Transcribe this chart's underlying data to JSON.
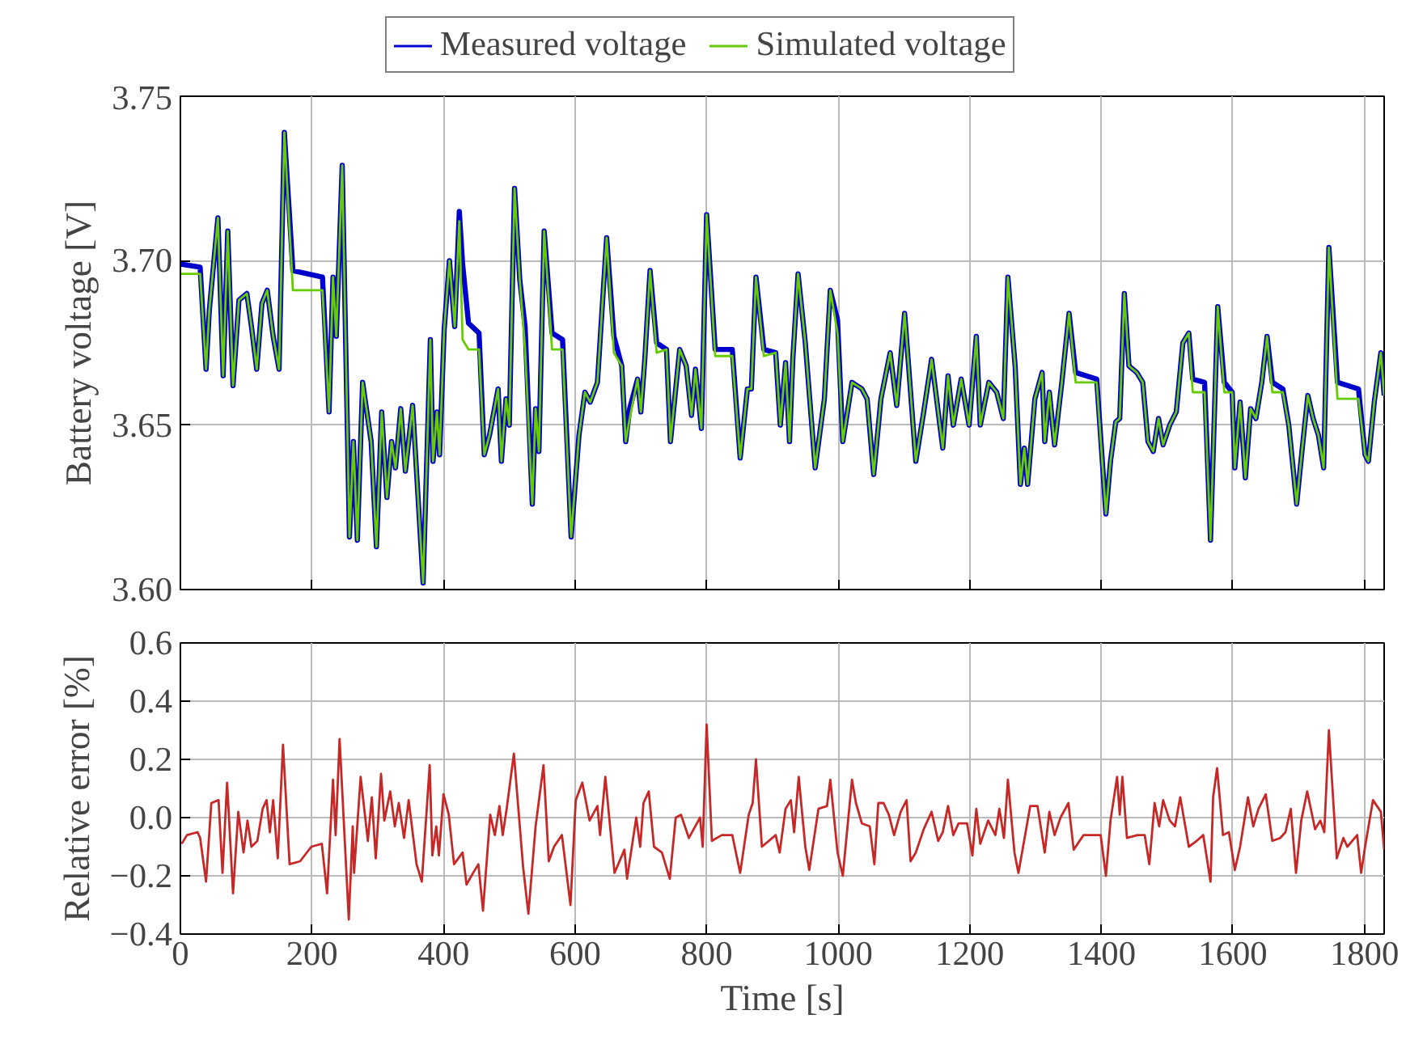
{
  "chart_data": [
    {
      "type": "line",
      "ylabel": "Battery voltage [V]",
      "xlim": [
        0,
        1830
      ],
      "ylim": [
        3.6,
        3.75
      ],
      "xticks": [
        0,
        200,
        400,
        600,
        800,
        1000,
        1200,
        1400,
        1600,
        1800
      ],
      "yticks": [
        {
          "value": 3.6,
          "label": "3.60"
        },
        {
          "value": 3.65,
          "label": "3.65"
        },
        {
          "value": 3.7,
          "label": "3.70"
        },
        {
          "value": 3.75,
          "label": "3.75"
        }
      ],
      "tick_labels": "y",
      "grid": true,
      "legend": "top",
      "x": [
        0,
        30,
        39,
        44,
        57,
        65,
        72,
        80,
        89,
        101,
        108,
        116,
        124,
        132,
        141,
        150,
        158,
        171,
        216,
        226,
        232,
        237,
        246,
        257,
        263,
        269,
        277,
        290,
        298,
        306,
        314,
        321,
        327,
        335,
        342,
        353,
        369,
        380,
        384,
        390,
        394,
        401,
        409,
        417,
        424,
        429,
        438,
        454,
        462,
        470,
        483,
        488,
        495,
        500,
        508,
        516,
        524,
        535,
        540,
        545,
        553,
        565,
        581,
        594,
        606,
        615,
        623,
        634,
        648,
        659,
        671,
        677,
        683,
        695,
        700,
        706,
        714,
        724,
        739,
        745,
        759,
        769,
        777,
        783,
        792,
        800,
        813,
        839,
        851,
        862,
        868,
        875,
        887,
        905,
        912,
        920,
        926,
        931,
        939,
        950,
        965,
        979,
        988,
        999,
        1007,
        1021,
        1036,
        1044,
        1054,
        1065,
        1079,
        1089,
        1101,
        1118,
        1130,
        1142,
        1159,
        1167,
        1175,
        1187,
        1199,
        1210,
        1216,
        1229,
        1241,
        1251,
        1258,
        1269,
        1277,
        1283,
        1288,
        1299,
        1310,
        1314,
        1321,
        1329,
        1340,
        1351,
        1361,
        1393,
        1407,
        1414,
        1422,
        1428,
        1435,
        1442,
        1454,
        1463,
        1471,
        1479,
        1487,
        1494,
        1504,
        1514,
        1524,
        1533,
        1539,
        1557,
        1566,
        1577,
        1587,
        1599,
        1603,
        1611,
        1619,
        1627,
        1635,
        1644,
        1652,
        1660,
        1676,
        1685,
        1697,
        1705,
        1714,
        1722,
        1730,
        1738,
        1746,
        1759,
        1791,
        1801,
        1806,
        1815,
        1825,
        1830
      ],
      "series": [
        {
          "name": "Measured voltage",
          "color": "#0000cc",
          "values": [
            3.699,
            3.698,
            3.667,
            3.685,
            3.713,
            3.665,
            3.709,
            3.662,
            3.688,
            3.69,
            3.68,
            3.667,
            3.687,
            3.691,
            3.677,
            3.667,
            3.739,
            3.697,
            3.695,
            3.654,
            3.695,
            3.677,
            3.729,
            3.616,
            3.645,
            3.615,
            3.663,
            3.645,
            3.613,
            3.654,
            3.628,
            3.645,
            3.637,
            3.655,
            3.636,
            3.656,
            3.602,
            3.676,
            3.639,
            3.654,
            3.641,
            3.679,
            3.7,
            3.68,
            3.715,
            3.699,
            3.681,
            3.678,
            3.641,
            3.647,
            3.661,
            3.639,
            3.658,
            3.65,
            3.722,
            3.694,
            3.68,
            3.626,
            3.655,
            3.642,
            3.709,
            3.678,
            3.676,
            3.616,
            3.647,
            3.66,
            3.657,
            3.663,
            3.707,
            3.677,
            3.668,
            3.645,
            3.655,
            3.664,
            3.654,
            3.67,
            3.697,
            3.675,
            3.673,
            3.645,
            3.673,
            3.668,
            3.653,
            3.667,
            3.649,
            3.714,
            3.673,
            3.673,
            3.64,
            3.661,
            3.661,
            3.695,
            3.673,
            3.672,
            3.65,
            3.669,
            3.645,
            3.67,
            3.696,
            3.675,
            3.637,
            3.658,
            3.691,
            3.682,
            3.645,
            3.663,
            3.661,
            3.658,
            3.635,
            3.658,
            3.672,
            3.656,
            3.684,
            3.639,
            3.654,
            3.67,
            3.643,
            3.665,
            3.65,
            3.664,
            3.65,
            3.677,
            3.65,
            3.663,
            3.66,
            3.652,
            3.695,
            3.668,
            3.632,
            3.643,
            3.632,
            3.658,
            3.666,
            3.645,
            3.66,
            3.644,
            3.663,
            3.684,
            3.666,
            3.664,
            3.623,
            3.639,
            3.651,
            3.652,
            3.69,
            3.668,
            3.666,
            3.663,
            3.645,
            3.642,
            3.652,
            3.644,
            3.65,
            3.654,
            3.675,
            3.678,
            3.664,
            3.663,
            3.615,
            3.686,
            3.663,
            3.66,
            3.637,
            3.657,
            3.634,
            3.655,
            3.652,
            3.663,
            3.677,
            3.663,
            3.661,
            3.65,
            3.626,
            3.642,
            3.659,
            3.652,
            3.647,
            3.637,
            3.704,
            3.663,
            3.661,
            3.641,
            3.639,
            3.657,
            3.672,
            3.659
          ]
        },
        {
          "name": "Simulated voltage",
          "color": "#66cc00",
          "values": [
            3.696,
            3.696,
            3.667,
            3.685,
            3.713,
            3.665,
            3.709,
            3.662,
            3.688,
            3.69,
            3.68,
            3.667,
            3.687,
            3.691,
            3.677,
            3.667,
            3.739,
            3.691,
            3.691,
            3.654,
            3.695,
            3.677,
            3.729,
            3.616,
            3.645,
            3.615,
            3.663,
            3.645,
            3.613,
            3.654,
            3.628,
            3.645,
            3.637,
            3.655,
            3.636,
            3.656,
            3.602,
            3.676,
            3.639,
            3.654,
            3.641,
            3.679,
            3.7,
            3.68,
            3.712,
            3.676,
            3.673,
            3.673,
            3.641,
            3.647,
            3.661,
            3.639,
            3.658,
            3.65,
            3.722,
            3.694,
            3.673,
            3.626,
            3.655,
            3.642,
            3.709,
            3.673,
            3.673,
            3.616,
            3.647,
            3.66,
            3.657,
            3.663,
            3.707,
            3.672,
            3.668,
            3.645,
            3.652,
            3.664,
            3.654,
            3.67,
            3.697,
            3.672,
            3.673,
            3.645,
            3.673,
            3.668,
            3.653,
            3.667,
            3.649,
            3.714,
            3.671,
            3.671,
            3.64,
            3.661,
            3.661,
            3.695,
            3.671,
            3.672,
            3.65,
            3.669,
            3.645,
            3.67,
            3.696,
            3.675,
            3.637,
            3.658,
            3.691,
            3.678,
            3.645,
            3.663,
            3.661,
            3.658,
            3.635,
            3.658,
            3.672,
            3.656,
            3.684,
            3.639,
            3.654,
            3.67,
            3.643,
            3.665,
            3.65,
            3.664,
            3.65,
            3.677,
            3.65,
            3.663,
            3.66,
            3.652,
            3.695,
            3.668,
            3.632,
            3.643,
            3.632,
            3.658,
            3.666,
            3.645,
            3.66,
            3.644,
            3.663,
            3.684,
            3.663,
            3.663,
            3.623,
            3.639,
            3.651,
            3.652,
            3.69,
            3.668,
            3.666,
            3.663,
            3.645,
            3.642,
            3.652,
            3.644,
            3.65,
            3.654,
            3.675,
            3.678,
            3.66,
            3.66,
            3.615,
            3.686,
            3.66,
            3.66,
            3.637,
            3.657,
            3.634,
            3.655,
            3.652,
            3.663,
            3.677,
            3.66,
            3.66,
            3.65,
            3.626,
            3.642,
            3.659,
            3.652,
            3.647,
            3.637,
            3.704,
            3.658,
            3.658,
            3.641,
            3.639,
            3.657,
            3.672,
            3.659
          ]
        }
      ]
    },
    {
      "type": "line",
      "xlabel": "Time [s]",
      "ylabel": "Relative error [%]",
      "xlim": [
        0,
        1830
      ],
      "ylim": [
        -0.4,
        0.6
      ],
      "xticks": [
        0,
        200,
        400,
        600,
        800,
        1000,
        1200,
        1400,
        1600,
        1800
      ],
      "yticks": [
        {
          "value": -0.4,
          "label": "−0.4"
        },
        {
          "value": -0.2,
          "label": "−0.2"
        },
        {
          "value": 0.0,
          "label": "0.0"
        },
        0.2,
        0.4,
        0.6
      ],
      "grid": true,
      "x": [
        2,
        10,
        26,
        30,
        39,
        47,
        58,
        64,
        71,
        80,
        88,
        96,
        102,
        108,
        117,
        125,
        131,
        136,
        141,
        148,
        156,
        166,
        182,
        199,
        215,
        223,
        232,
        236,
        242,
        256,
        262,
        264,
        274,
        285,
        291,
        297,
        305,
        310,
        319,
        326,
        332,
        340,
        347,
        359,
        367,
        379,
        383,
        389,
        393,
        400,
        408,
        416,
        429,
        435,
        445,
        453,
        460,
        471,
        478,
        485,
        490,
        496,
        507,
        521,
        529,
        540,
        552,
        560,
        568,
        580,
        593,
        601,
        611,
        622,
        634,
        638,
        646,
        660,
        675,
        679,
        693,
        699,
        704,
        712,
        720,
        732,
        744,
        753,
        761,
        773,
        790,
        794,
        800,
        808,
        823,
        839,
        851,
        864,
        870,
        875,
        884,
        905,
        911,
        920,
        928,
        933,
        940,
        950,
        956,
        970,
        983,
        988,
        999,
        1007,
        1021,
        1027,
        1036,
        1048,
        1055,
        1061,
        1069,
        1077,
        1085,
        1095,
        1104,
        1110,
        1118,
        1130,
        1142,
        1152,
        1159,
        1167,
        1175,
        1183,
        1196,
        1204,
        1210,
        1216,
        1228,
        1239,
        1245,
        1252,
        1258,
        1268,
        1274,
        1292,
        1303,
        1314,
        1321,
        1329,
        1338,
        1350,
        1358,
        1373,
        1389,
        1399,
        1407,
        1414,
        1424,
        1428,
        1432,
        1439,
        1455,
        1466,
        1473,
        1481,
        1488,
        1494,
        1504,
        1512,
        1520,
        1533,
        1545,
        1555,
        1566,
        1570,
        1576,
        1585,
        1594,
        1603,
        1611,
        1623,
        1631,
        1639,
        1650,
        1660,
        1672,
        1680,
        1688,
        1696,
        1704,
        1713,
        1725,
        1733,
        1739,
        1746,
        1758,
        1768,
        1774,
        1789,
        1795,
        1801,
        1813,
        1819,
        1825,
        1830
      ],
      "series": [
        {
          "color": "#c62828",
          "values": [
            -0.09,
            -0.06,
            -0.05,
            -0.07,
            -0.22,
            0.05,
            0.06,
            -0.19,
            0.12,
            -0.26,
            0.02,
            -0.12,
            -0.01,
            -0.1,
            -0.08,
            0.03,
            0.06,
            -0.05,
            0.06,
            -0.14,
            0.25,
            -0.16,
            -0.15,
            -0.1,
            -0.09,
            -0.26,
            0.13,
            -0.06,
            0.27,
            -0.35,
            -0.03,
            -0.19,
            0.14,
            -0.08,
            0.07,
            -0.14,
            0.15,
            -0.01,
            0.09,
            -0.03,
            0.05,
            -0.07,
            0.06,
            -0.16,
            -0.22,
            0.18,
            -0.13,
            -0.03,
            -0.13,
            0.08,
            0.01,
            -0.16,
            -0.12,
            -0.23,
            -0.19,
            -0.16,
            -0.32,
            0.01,
            -0.06,
            0.04,
            -0.06,
            0.03,
            0.22,
            -0.17,
            -0.33,
            -0.03,
            0.18,
            -0.15,
            -0.1,
            -0.06,
            -0.3,
            0.06,
            0.12,
            -0.01,
            0.04,
            -0.06,
            0.14,
            -0.19,
            -0.11,
            -0.21,
            0.0,
            -0.1,
            0.05,
            0.09,
            -0.1,
            -0.12,
            -0.21,
            0.0,
            0.01,
            -0.07,
            0.0,
            -0.1,
            0.32,
            -0.08,
            -0.06,
            -0.06,
            -0.19,
            0.01,
            0.05,
            0.2,
            -0.1,
            -0.06,
            -0.12,
            0.03,
            0.06,
            -0.05,
            0.14,
            -0.1,
            -0.18,
            0.03,
            0.04,
            0.13,
            -0.12,
            -0.2,
            0.13,
            0.05,
            -0.02,
            -0.03,
            -0.16,
            0.05,
            0.05,
            0.01,
            -0.06,
            0.02,
            0.06,
            -0.15,
            -0.12,
            -0.04,
            0.02,
            -0.08,
            -0.05,
            0.04,
            -0.06,
            -0.02,
            -0.02,
            -0.13,
            0.03,
            -0.09,
            -0.01,
            -0.06,
            0.03,
            -0.07,
            0.13,
            -0.12,
            -0.19,
            0.04,
            0.04,
            -0.12,
            0.02,
            -0.06,
            0.0,
            0.05,
            -0.11,
            -0.06,
            -0.06,
            -0.06,
            -0.2,
            -0.01,
            0.14,
            0.01,
            0.14,
            -0.07,
            -0.06,
            -0.06,
            -0.16,
            0.05,
            -0.03,
            0.06,
            -0.01,
            -0.03,
            0.07,
            -0.1,
            -0.08,
            -0.06,
            -0.22,
            0.07,
            0.17,
            -0.06,
            -0.05,
            -0.18,
            -0.1,
            0.07,
            -0.03,
            0.03,
            0.08,
            -0.08,
            -0.07,
            -0.05,
            0.03,
            -0.19,
            -0.01,
            0.09,
            -0.04,
            -0.01,
            -0.05,
            0.3,
            -0.14,
            -0.07,
            -0.1,
            -0.06,
            -0.19,
            -0.1,
            0.06,
            0.04,
            0.02,
            -0.11
          ]
        }
      ]
    }
  ]
}
